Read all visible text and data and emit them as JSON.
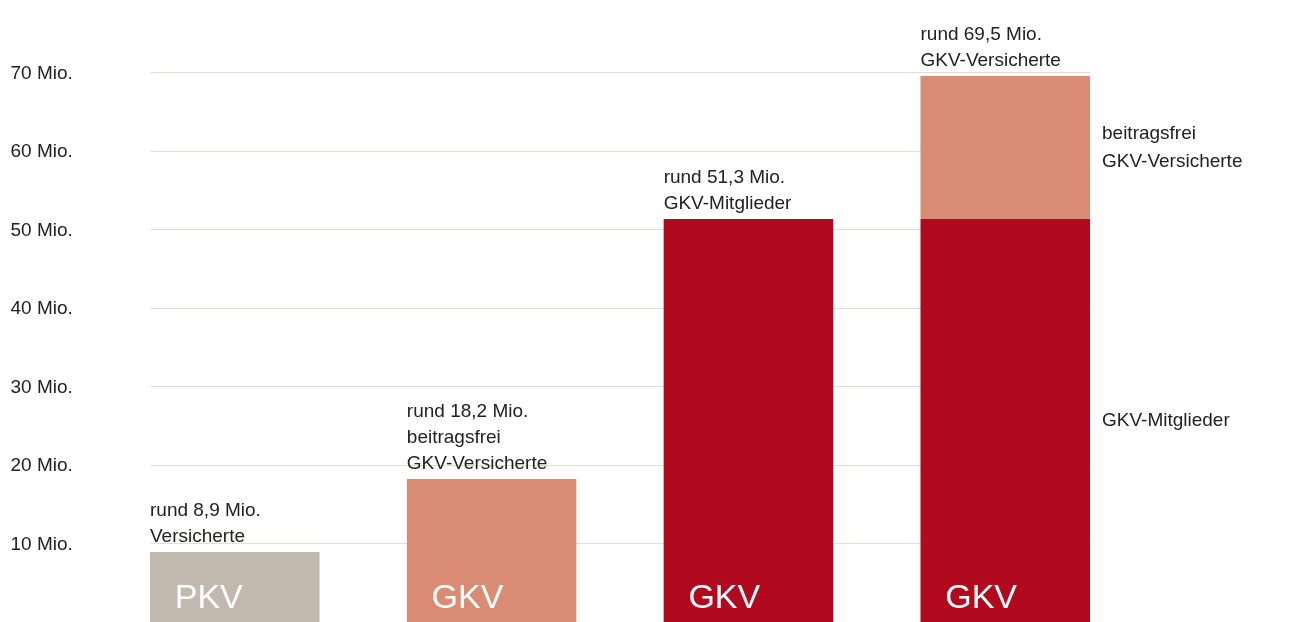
{
  "chart_data": {
    "type": "bar",
    "stacked": true,
    "categories": [
      "PKV",
      "GKV",
      "GKV",
      "GKV"
    ],
    "series": [
      {
        "color": "#c2b9ae",
        "values": [
          8.9,
          0,
          0,
          0
        ]
      },
      {
        "name": "GKV-Mitglieder",
        "color": "#b10a1e",
        "values": [
          0,
          0,
          51.3,
          51.3
        ]
      },
      {
        "name": "beitragsfrei\nGKV-Versicherte",
        "color": "#d98c73",
        "values": [
          0,
          18.2,
          0,
          18.2
        ]
      }
    ],
    "totals": [
      "rund 8,9 Mio.\nVersicherte",
      "rund 18,2 Mio.\nbeitragsfrei\nGKV-Versicherte",
      "rund 51,3 Mio.\nGKV-Mitglieder",
      "rund 69,5 Mio.\nGKV-Versicherte"
    ],
    "ylim": [
      0,
      70
    ],
    "yticks": [
      {
        "value": 10,
        "label": "10 Mio."
      },
      {
        "value": 20,
        "label": "20 Mio."
      },
      {
        "value": 30,
        "label": "30 Mio."
      },
      {
        "value": 40,
        "label": "40 Mio."
      },
      {
        "value": 50,
        "label": "50 Mio."
      },
      {
        "value": 60,
        "label": "60 Mio."
      },
      {
        "value": 70,
        "label": "70 Mio."
      }
    ],
    "grid": "y",
    "legend": false
  }
}
